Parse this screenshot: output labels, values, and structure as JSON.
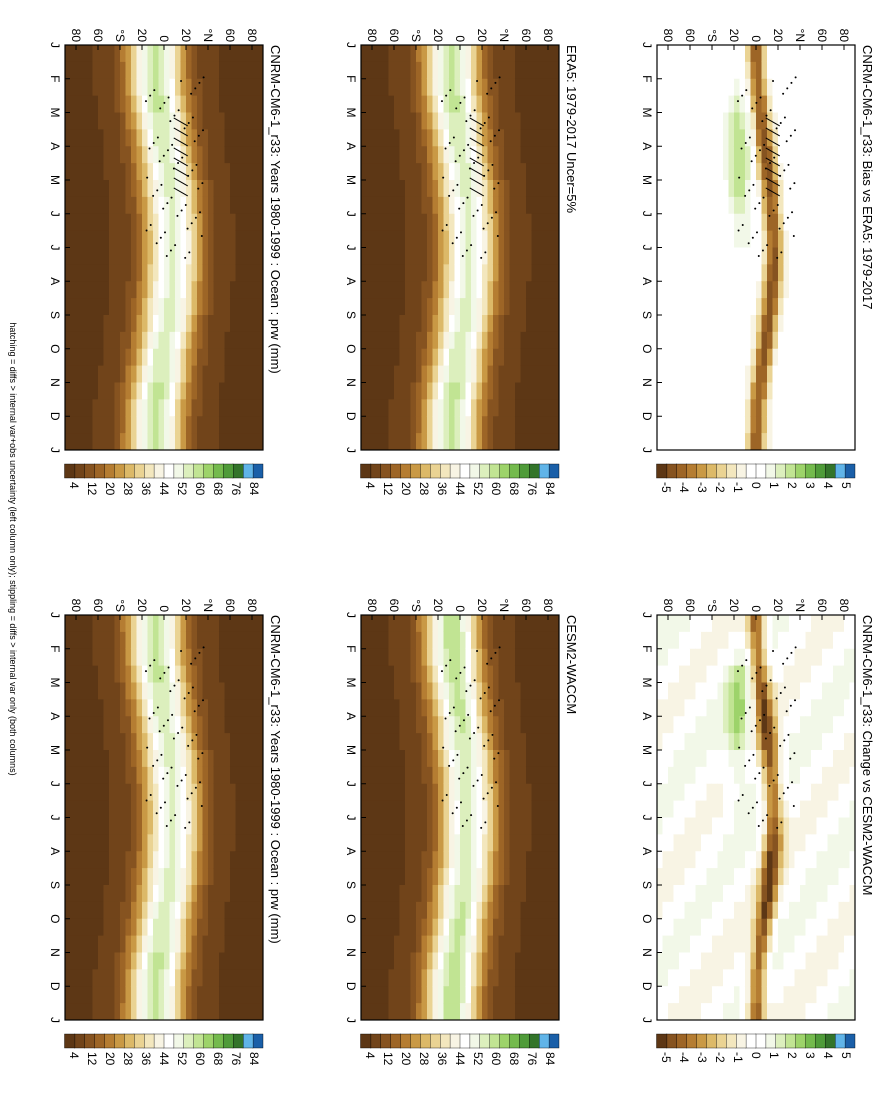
{
  "footer": "hatching = diffs > internal var+obs uncertainty (left column only); stippling = diffs > internal var only (both columns)",
  "rotation_note": "page is rotated 90 degrees clockwise",
  "colors": {
    "full": [
      "#1a5fa8",
      "#60b4e8",
      "#33742a",
      "#4f9b39",
      "#74ba4d",
      "#9dd36a",
      "#c1e493",
      "#dcefbd",
      "#f2f8e8",
      "#ffffff",
      "#f8f4e4",
      "#f3e7be",
      "#ead393",
      "#dcb968",
      "#c99945",
      "#b57d32",
      "#9d6526",
      "#865320",
      "#71441a",
      "#5d3715"
    ],
    "diff": [
      "#1a5fa8",
      "#60b4e8",
      "#33742a",
      "#4f9b39",
      "#74ba4d",
      "#9dd36a",
      "#c1e493",
      "#dcefbd",
      "#f2f8e8",
      "#ffffff",
      "#ffffff",
      "#f8f4e4",
      "#f3e7be",
      "#ead393",
      "#dcb968",
      "#c99945",
      "#b57d32",
      "#9d6526",
      "#865320",
      "#5d3715"
    ]
  },
  "chart_data": [
    {
      "type": "heatmap",
      "title": "CNRM-CM6-1_r33: Years 1980-1999 : Ocean : prw (mm)",
      "months": [
        "J",
        "F",
        "M",
        "A",
        "M",
        "J",
        "J",
        "A",
        "S",
        "O",
        "N",
        "D",
        "J"
      ],
      "lat_ticks": [
        "80",
        "60",
        "°N",
        "20",
        "0",
        "20",
        "°S",
        "60",
        "80"
      ],
      "colorbar_ticks": [
        "84",
        "76",
        "68",
        "60",
        "52",
        "44",
        "36",
        "28",
        "20",
        "12",
        "4"
      ],
      "colorbar_type": "full",
      "hatching": true
    },
    {
      "type": "heatmap",
      "title": "CNRM-CM6-1_r33: Years 1980-1999 : Ocean : prw (mm)",
      "months": [
        "J",
        "F",
        "M",
        "A",
        "M",
        "J",
        "J",
        "A",
        "S",
        "O",
        "N",
        "D",
        "J"
      ],
      "lat_ticks": [
        "80",
        "60",
        "°N",
        "20",
        "0",
        "20",
        "°S",
        "60",
        "80"
      ],
      "colorbar_ticks": [
        "84",
        "76",
        "68",
        "60",
        "52",
        "44",
        "36",
        "28",
        "20",
        "12",
        "4"
      ],
      "colorbar_type": "full",
      "hatching": false
    },
    {
      "type": "heatmap",
      "title": "ERA5: 1979-2017 Uncer=5%",
      "months": [
        "J",
        "F",
        "M",
        "A",
        "M",
        "J",
        "J",
        "A",
        "S",
        "O",
        "N",
        "D",
        "J"
      ],
      "lat_ticks": [
        "80",
        "60",
        "°N",
        "20",
        "0",
        "20",
        "°S",
        "60",
        "80"
      ],
      "colorbar_ticks": [
        "84",
        "76",
        "68",
        "60",
        "52",
        "44",
        "36",
        "28",
        "20",
        "12",
        "4"
      ],
      "colorbar_type": "full",
      "hatching": true
    },
    {
      "type": "heatmap",
      "title": "CESM2-WACCM",
      "months": [
        "J",
        "F",
        "M",
        "A",
        "M",
        "J",
        "J",
        "A",
        "S",
        "O",
        "N",
        "D",
        "J"
      ],
      "lat_ticks": [
        "80",
        "60",
        "°N",
        "20",
        "0",
        "20",
        "°S",
        "60",
        "80"
      ],
      "colorbar_ticks": [
        "84",
        "76",
        "68",
        "60",
        "52",
        "44",
        "36",
        "28",
        "20",
        "12",
        "4"
      ],
      "colorbar_type": "full",
      "hatching": false
    },
    {
      "type": "heatmap",
      "title": "CNRM-CM6-1_r33: Bias vs ERA5: 1979-2017",
      "months": [
        "J",
        "F",
        "M",
        "A",
        "M",
        "J",
        "J",
        "A",
        "S",
        "O",
        "N",
        "D",
        "J"
      ],
      "lat_ticks": [
        "80",
        "60",
        "°N",
        "20",
        "0",
        "20",
        "°S",
        "60",
        "80"
      ],
      "colorbar_ticks": [
        "5",
        "4",
        "3",
        "2",
        "1",
        "0",
        "-1",
        "-2",
        "-3",
        "-4",
        "-5"
      ],
      "colorbar_type": "diff",
      "hatching": true
    },
    {
      "type": "heatmap",
      "title": "CNRM-CM6-1_r33: Change vs CESM2-WACCM",
      "months": [
        "J",
        "F",
        "M",
        "A",
        "M",
        "J",
        "J",
        "A",
        "S",
        "O",
        "N",
        "D",
        "J"
      ],
      "lat_ticks": [
        "80",
        "60",
        "°N",
        "20",
        "0",
        "20",
        "°S",
        "60",
        "80"
      ],
      "colorbar_ticks": [
        "5",
        "4",
        "3",
        "2",
        "1",
        "0",
        "-1",
        "-2",
        "-3",
        "-4",
        "-5"
      ],
      "colorbar_type": "diff",
      "hatching": false
    }
  ]
}
